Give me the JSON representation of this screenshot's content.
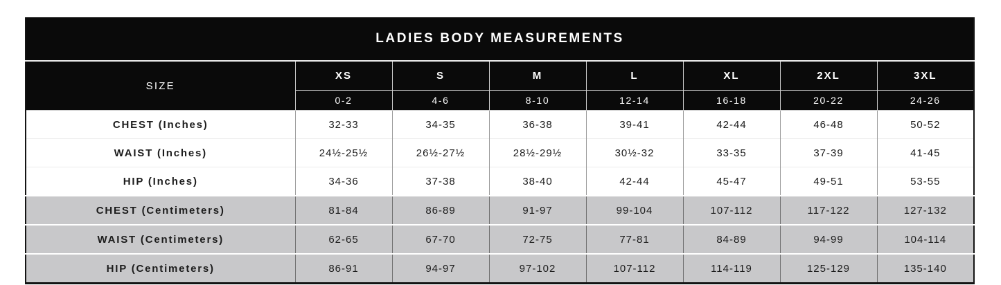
{
  "chart_data": {
    "type": "table",
    "title": "LADIES BODY MEASUREMENTS",
    "row_header": "SIZE",
    "column_groups": [
      "XS",
      "S",
      "M",
      "L",
      "XL",
      "2XL",
      "3XL"
    ],
    "column_subheaders": [
      "0-2",
      "4-6",
      "8-10",
      "12-14",
      "16-18",
      "20-22",
      "24-26"
    ],
    "rows": [
      {
        "label": "CHEST (Inches)",
        "values": [
          "32-33",
          "34-35",
          "36-38",
          "39-41",
          "42-44",
          "46-48",
          "50-52"
        ]
      },
      {
        "label": "WAIST (Inches)",
        "values": [
          "24½-25½",
          "26½-27½",
          "28½-29½",
          "30½-32",
          "33-35",
          "37-39",
          "41-45"
        ]
      },
      {
        "label": "HIP (Inches)",
        "values": [
          "34-36",
          "37-38",
          "38-40",
          "42-44",
          "45-47",
          "49-51",
          "53-55"
        ]
      },
      {
        "label": "CHEST (Centimeters)",
        "values": [
          "81-84",
          "86-89",
          "91-97",
          "99-104",
          "107-112",
          "117-122",
          "127-132"
        ]
      },
      {
        "label": "WAIST (Centimeters)",
        "values": [
          "62-65",
          "67-70",
          "72-75",
          "77-81",
          "84-89",
          "94-99",
          "104-114"
        ]
      },
      {
        "label": "HIP (Centimeters)",
        "values": [
          "86-91",
          "94-97",
          "97-102",
          "107-112",
          "114-119",
          "125-129",
          "135-140"
        ]
      }
    ],
    "layout_hints": {
      "header_background": "#0a0a0a",
      "header_text_color": "#ffffff",
      "inches_row_background": "#ffffff",
      "centimeters_row_background": "#c8c8ca",
      "grid_line_color": "#9a9a9a",
      "outer_border_color": "#141414"
    }
  }
}
